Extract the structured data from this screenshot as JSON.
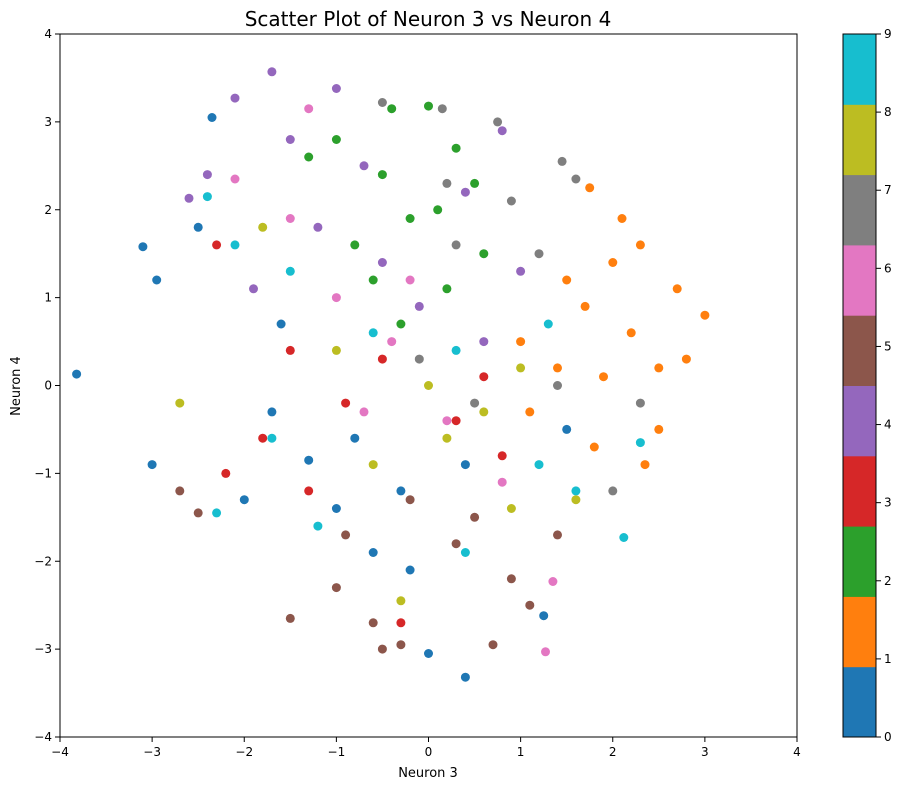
{
  "chart_data": {
    "type": "scatter",
    "title": "Scatter Plot of Neuron 3 vs Neuron 4",
    "xlabel": "Neuron 3",
    "ylabel": "Neuron 4",
    "xlim": [
      -4,
      4
    ],
    "ylim": [
      -4,
      4
    ],
    "xticks": [
      -4,
      -3,
      -2,
      -1,
      0,
      1,
      2,
      3,
      4
    ],
    "yticks": [
      -4,
      -3,
      -2,
      -1,
      0,
      1,
      2,
      3,
      4
    ],
    "xtick_labels": [
      "−4",
      "−3",
      "−2",
      "−1",
      "0",
      "1",
      "2",
      "3",
      "4"
    ],
    "ytick_labels": [
      "−4",
      "−3",
      "−2",
      "−1",
      "0",
      "1",
      "2",
      "3",
      "4"
    ],
    "grid": false,
    "colorbar": {
      "min": 0,
      "max": 9,
      "tick_labels": [
        "0",
        "1",
        "2",
        "3",
        "4",
        "5",
        "6",
        "7",
        "8",
        "9"
      ],
      "colors": [
        "#1f77b4",
        "#ff7f0e",
        "#2ca02c",
        "#d62728",
        "#9467bd",
        "#8c564b",
        "#e377c2",
        "#7f7f7f",
        "#bcbd22",
        "#17becf"
      ]
    },
    "series": [
      {
        "values": [
          [
            -3.82,
            0.13
          ],
          [
            -3.1,
            1.58
          ],
          [
            -2.95,
            1.2
          ],
          [
            -3.0,
            -0.9
          ],
          [
            -2.5,
            1.8
          ],
          [
            -2.35,
            3.05
          ],
          [
            -1.7,
            -0.3
          ],
          [
            -1.3,
            -0.85
          ],
          [
            -1.0,
            -1.4
          ],
          [
            -0.6,
            -1.9
          ],
          [
            -0.2,
            -2.1
          ],
          [
            0.0,
            -3.05
          ],
          [
            0.4,
            -3.32
          ],
          [
            1.25,
            -2.62
          ],
          [
            1.5,
            -0.5
          ],
          [
            -1.6,
            0.7
          ],
          [
            -2.0,
            -1.3
          ],
          [
            -0.8,
            -0.6
          ],
          [
            -0.3,
            -1.2
          ],
          [
            0.4,
            -0.9
          ]
        ]
      },
      {
        "values": [
          [
            1.75,
            2.25
          ],
          [
            2.1,
            1.9
          ],
          [
            2.2,
            0.6
          ],
          [
            2.5,
            0.2
          ],
          [
            3.0,
            0.8
          ],
          [
            2.8,
            0.3
          ],
          [
            2.5,
            -0.5
          ],
          [
            2.35,
            -0.9
          ],
          [
            2.7,
            1.1
          ],
          [
            1.4,
            0.2
          ],
          [
            1.1,
            -0.3
          ],
          [
            1.8,
            -0.7
          ],
          [
            2.0,
            1.4
          ],
          [
            2.3,
            1.6
          ],
          [
            1.5,
            1.2
          ],
          [
            1.0,
            0.5
          ],
          [
            1.9,
            0.1
          ],
          [
            1.7,
            0.9
          ]
        ]
      },
      {
        "values": [
          [
            0.0,
            3.18
          ],
          [
            -0.4,
            3.15
          ],
          [
            -1.0,
            2.8
          ],
          [
            -0.5,
            2.4
          ],
          [
            0.5,
            2.3
          ],
          [
            -0.2,
            1.9
          ],
          [
            -0.8,
            1.6
          ],
          [
            0.2,
            1.1
          ],
          [
            -0.3,
            0.7
          ],
          [
            0.6,
            1.5
          ],
          [
            -1.3,
            2.6
          ],
          [
            0.3,
            2.7
          ],
          [
            -0.6,
            1.2
          ],
          [
            0.1,
            2.0
          ]
        ]
      },
      {
        "values": [
          [
            -2.3,
            1.6
          ],
          [
            -2.2,
            -1.0
          ],
          [
            -1.3,
            -1.2
          ],
          [
            -0.3,
            -2.7
          ],
          [
            0.8,
            -0.8
          ],
          [
            -1.5,
            0.4
          ],
          [
            -0.9,
            -0.2
          ],
          [
            0.3,
            -0.4
          ],
          [
            -0.5,
            0.3
          ],
          [
            -1.8,
            -0.6
          ],
          [
            0.6,
            0.1
          ]
        ]
      },
      {
        "values": [
          [
            -1.7,
            3.57
          ],
          [
            -1.0,
            3.38
          ],
          [
            -2.1,
            3.27
          ],
          [
            -1.5,
            2.8
          ],
          [
            -2.6,
            2.13
          ],
          [
            -0.7,
            2.5
          ],
          [
            0.8,
            2.9
          ],
          [
            -1.2,
            1.8
          ],
          [
            -0.5,
            1.4
          ],
          [
            0.4,
            2.2
          ],
          [
            1.0,
            1.3
          ],
          [
            -1.9,
            1.1
          ],
          [
            -0.1,
            0.9
          ],
          [
            0.6,
            0.5
          ],
          [
            -2.4,
            2.4
          ]
        ]
      },
      {
        "values": [
          [
            -1.5,
            -2.65
          ],
          [
            -0.6,
            -2.7
          ],
          [
            -0.5,
            -3.0
          ],
          [
            -0.3,
            -2.95
          ],
          [
            0.7,
            -2.95
          ],
          [
            1.1,
            -2.5
          ],
          [
            0.9,
            -2.2
          ],
          [
            -1.0,
            -2.3
          ],
          [
            0.3,
            -1.8
          ],
          [
            -0.2,
            -1.3
          ],
          [
            0.5,
            -1.5
          ],
          [
            -2.7,
            -1.2
          ],
          [
            -2.5,
            -1.45
          ],
          [
            -0.9,
            -1.7
          ],
          [
            1.4,
            -1.7
          ]
        ]
      },
      {
        "values": [
          [
            -1.3,
            3.15
          ],
          [
            -2.1,
            2.35
          ],
          [
            -1.0,
            1.0
          ],
          [
            -0.4,
            0.5
          ],
          [
            0.2,
            -0.4
          ],
          [
            1.27,
            -3.03
          ],
          [
            0.8,
            -1.1
          ],
          [
            -0.7,
            -0.3
          ],
          [
            -1.5,
            1.9
          ],
          [
            1.35,
            -2.23
          ],
          [
            -0.2,
            1.2
          ]
        ]
      },
      {
        "values": [
          [
            -0.5,
            3.22
          ],
          [
            0.15,
            3.15
          ],
          [
            0.75,
            3.0
          ],
          [
            1.45,
            2.55
          ],
          [
            1.6,
            2.35
          ],
          [
            0.9,
            2.1
          ],
          [
            0.3,
            1.6
          ],
          [
            1.2,
            1.5
          ],
          [
            -0.1,
            0.3
          ],
          [
            0.5,
            -0.2
          ],
          [
            1.4,
            0.0
          ],
          [
            2.0,
            -1.2
          ],
          [
            2.3,
            -0.2
          ],
          [
            0.2,
            2.3
          ]
        ]
      },
      {
        "values": [
          [
            -2.7,
            -0.2
          ],
          [
            -1.8,
            1.8
          ],
          [
            -1.0,
            0.4
          ],
          [
            0.2,
            -0.6
          ],
          [
            0.9,
            -1.4
          ],
          [
            -0.3,
            -2.45
          ],
          [
            0.6,
            -0.3
          ],
          [
            1.6,
            -1.3
          ],
          [
            -0.6,
            -0.9
          ],
          [
            0.0,
            0.0
          ],
          [
            1.0,
            0.2
          ]
        ]
      },
      {
        "values": [
          [
            -2.4,
            2.15
          ],
          [
            -2.1,
            1.6
          ],
          [
            -1.5,
            1.3
          ],
          [
            -1.7,
            -0.6
          ],
          [
            -0.6,
            0.6
          ],
          [
            0.3,
            0.4
          ],
          [
            1.2,
            -0.9
          ],
          [
            2.12,
            -1.73
          ],
          [
            2.3,
            -0.65
          ],
          [
            1.6,
            -1.2
          ],
          [
            -1.2,
            -1.6
          ],
          [
            0.4,
            -1.9
          ],
          [
            1.3,
            0.7
          ],
          [
            -2.3,
            -1.45
          ]
        ]
      }
    ]
  }
}
